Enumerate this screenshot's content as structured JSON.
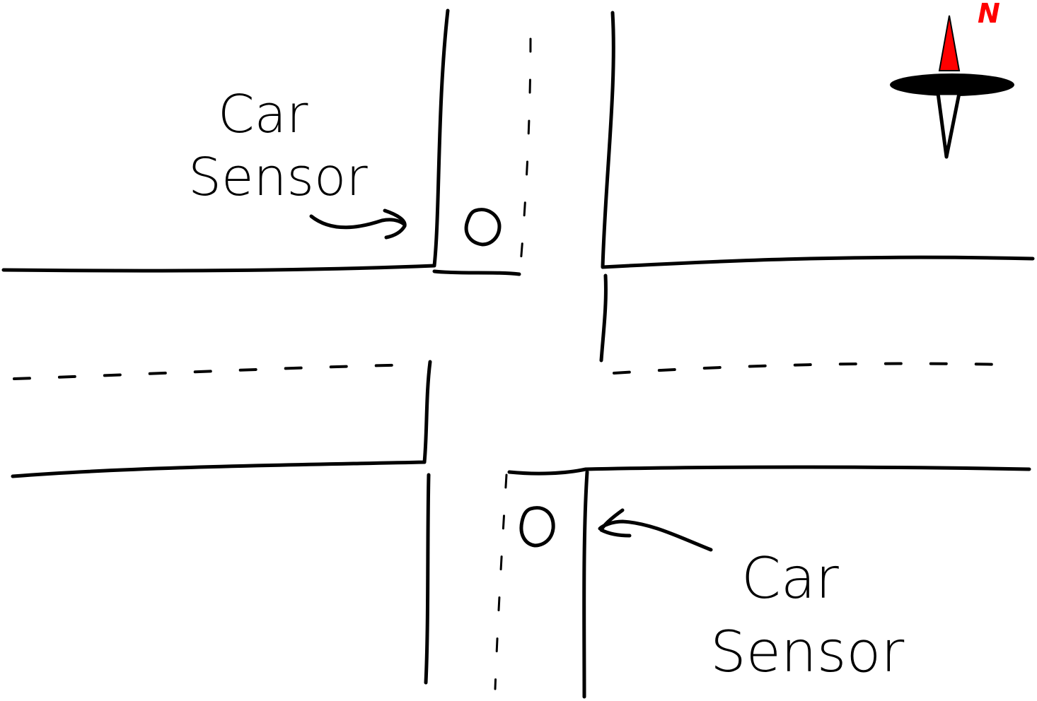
{
  "labels": {
    "sensor_top": {
      "line1": "Car",
      "line2": "Sensor"
    },
    "sensor_bottom": {
      "line1": "Car",
      "line2": "Sensor"
    }
  },
  "compass": {
    "north_label": "N",
    "north_color": "#ff0000"
  },
  "icons": [
    "compass-icon",
    "arrow-icon",
    "sensor-icon"
  ]
}
